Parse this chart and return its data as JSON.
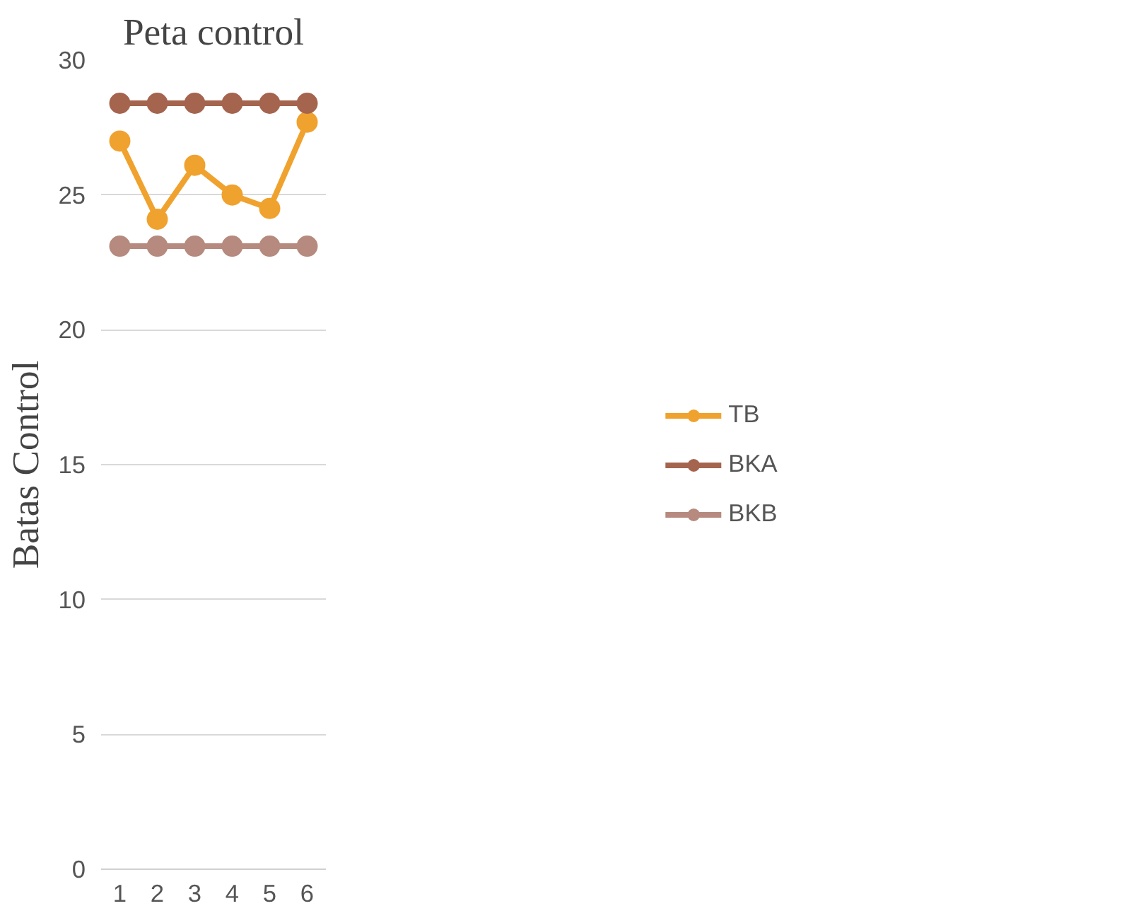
{
  "chart_data": {
    "type": "line",
    "title": "Peta control",
    "ylabel": "Batas Control",
    "categories": [
      "1",
      "2",
      "3",
      "4",
      "5",
      "6"
    ],
    "series": [
      {
        "name": "TB",
        "color": "#f0a22e",
        "values": [
          27.0,
          24.1,
          26.1,
          25.0,
          24.5,
          27.7
        ]
      },
      {
        "name": "BKA",
        "color": "#a5644e",
        "values": [
          28.4,
          28.4,
          28.4,
          28.4,
          28.4,
          28.4
        ]
      },
      {
        "name": "BKB",
        "color": "#b68a7e",
        "values": [
          23.1,
          23.1,
          23.1,
          23.1,
          23.1,
          23.1
        ]
      }
    ],
    "ylim": [
      0,
      30
    ],
    "yticks": [
      0,
      5,
      10,
      15,
      20,
      25,
      30
    ],
    "grid": "y",
    "legend": "right",
    "marker": "circle",
    "line_style": "solid"
  }
}
